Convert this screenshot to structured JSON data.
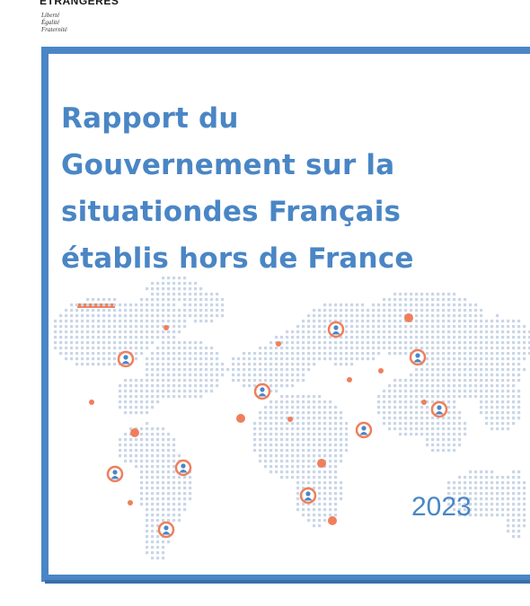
{
  "header": {
    "ministry_partial": "ÉTRANGÈRES",
    "motto": [
      "Liberté",
      "Égalité",
      "Fraternité"
    ]
  },
  "cover": {
    "title_lines": [
      "Rapport du",
      "Gouvernement sur la",
      "situationdes Français",
      "établis hors de France"
    ],
    "year": "2023"
  },
  "colors": {
    "primary_blue": "#4a86c5",
    "accent_orange": "#ef7f5a",
    "map_dots": "#c9d6e8"
  },
  "map": {
    "markers": [
      "person-marker-icon"
    ],
    "dots": [
      "accent-dot"
    ]
  }
}
